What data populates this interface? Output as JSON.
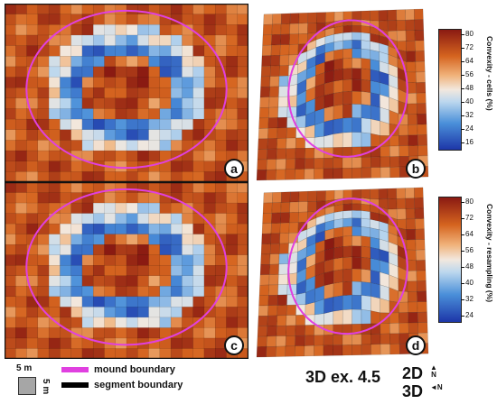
{
  "panels": {
    "a": {
      "label": "a"
    },
    "b": {
      "label": "b"
    },
    "c": {
      "label": "c"
    },
    "d": {
      "label": "d"
    }
  },
  "colorbars": {
    "top": {
      "title": "Convexity - cells (%)",
      "ticks": [
        "80",
        "72",
        "64",
        "56",
        "48",
        "40",
        "32",
        "24",
        "16"
      ]
    },
    "bottom": {
      "title": "Convexity - resampling (%)",
      "ticks": [
        "80",
        "72",
        "64",
        "56",
        "48",
        "40",
        "32",
        "24"
      ]
    }
  },
  "legend": {
    "mound": "mound boundary",
    "segment": "segment boundary",
    "mound_color": "#e040e0",
    "segment_color": "#000000"
  },
  "scale": {
    "top": "5 m",
    "side": "5 m"
  },
  "example": "3D ex. 4.5",
  "dims": {
    "d2": "2D",
    "d3": "3D"
  },
  "compass": {
    "n_2d": "N",
    "n_3d": "N"
  },
  "colors": {
    "low": "#1d36a8",
    "mid": "#f2e8de",
    "high": "#8a1a12"
  }
}
